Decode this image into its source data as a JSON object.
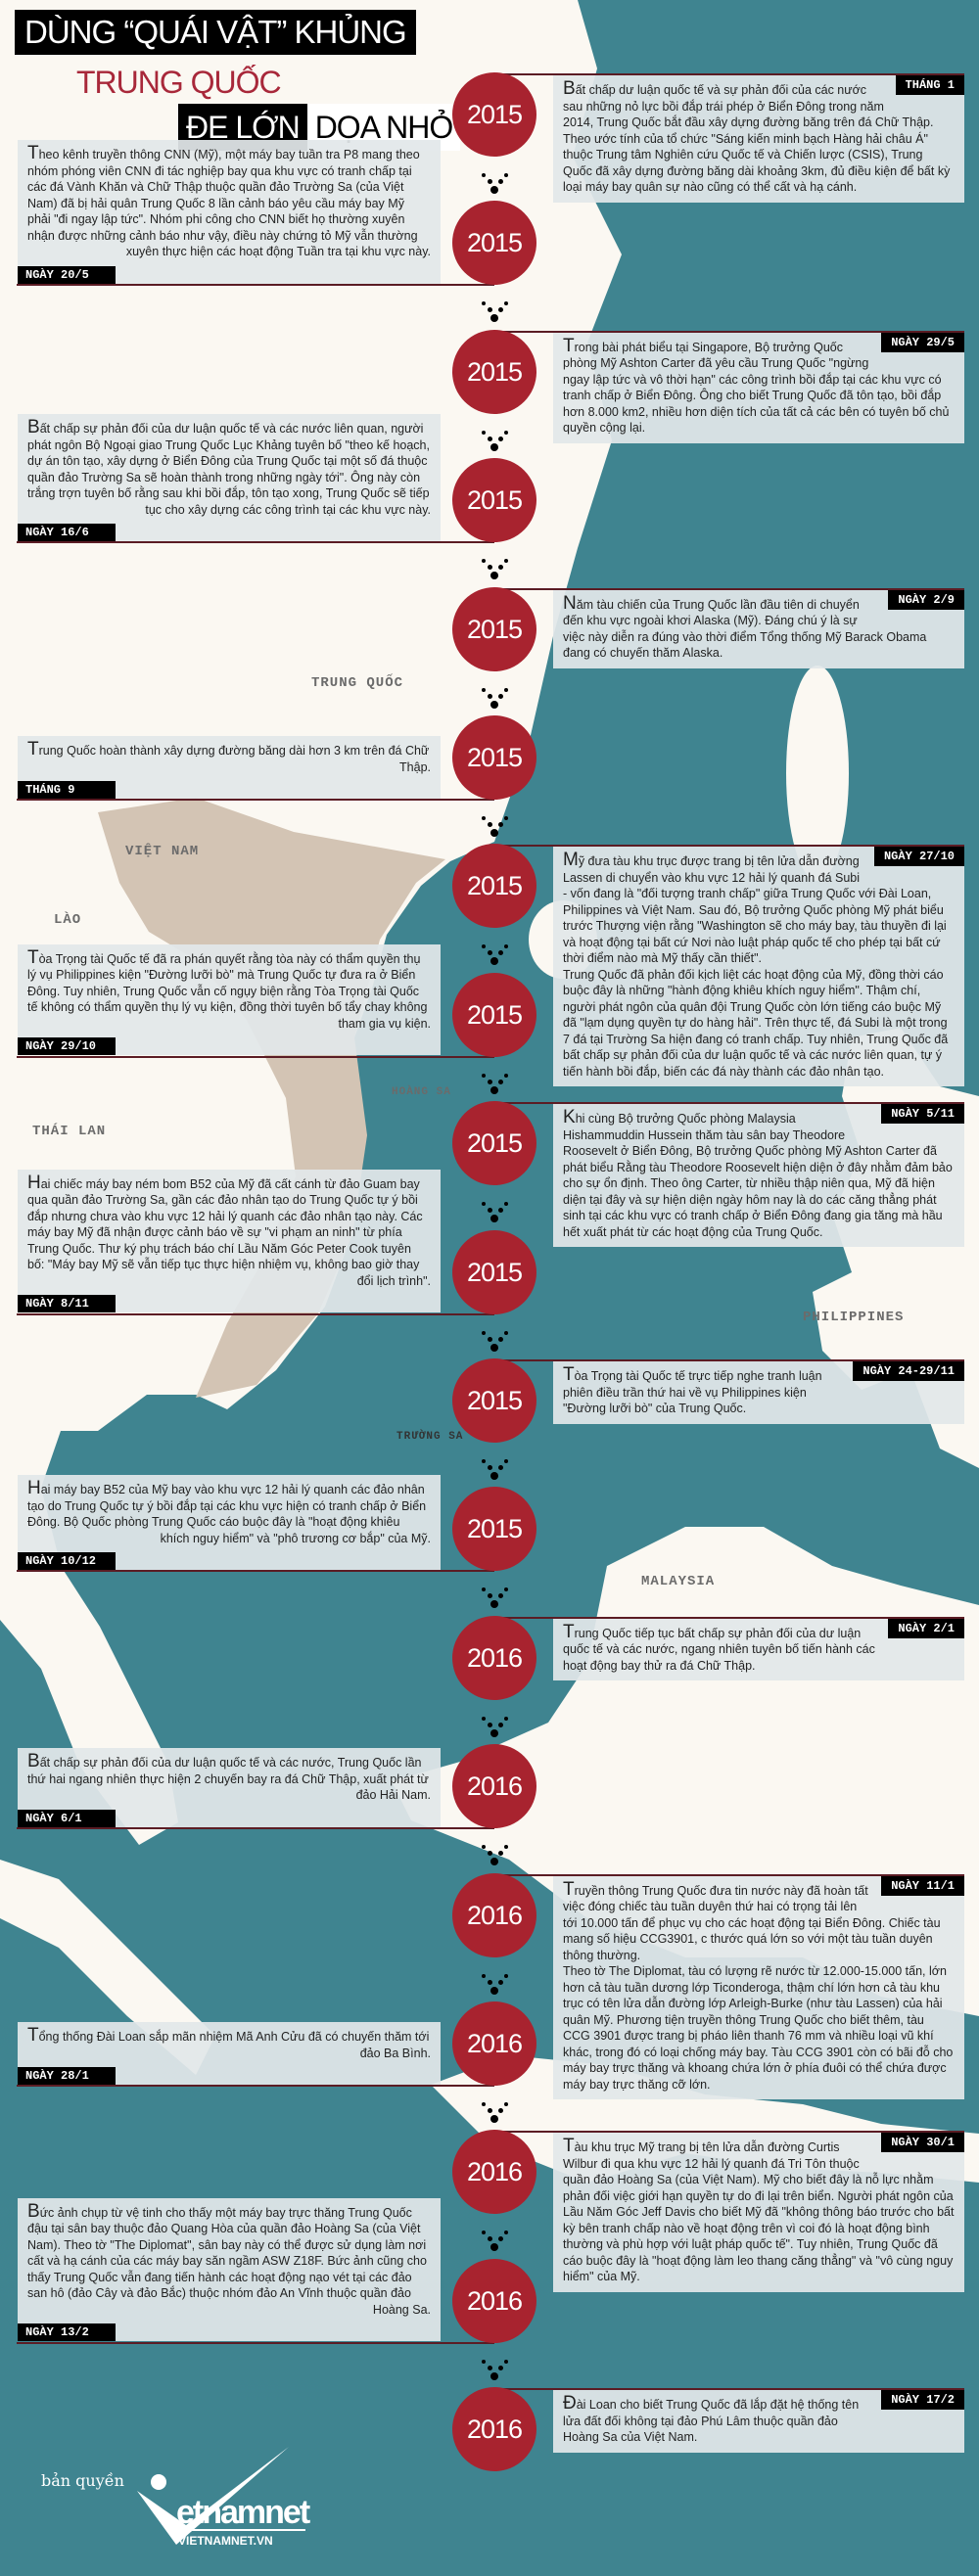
{
  "title": {
    "line1": "DÙNG “QUÁI VẬT” KHỦNG",
    "line2": "TRUNG QUỐC",
    "line3a": "ĐE LỚN",
    "line3b": "DỌA NHỎ"
  },
  "colors": {
    "sea": "#3f8490",
    "land": "#fbf8f2",
    "vietnam": "#d3c4b4",
    "circle": "#a8232f",
    "title_red": "#a8283a"
  },
  "map_labels": {
    "china": "TRUNG QUỐC",
    "vietnam": "VIỆT NAM",
    "laos": "LÀO",
    "thailand": "THÁI LAN",
    "paracel": "HOÀNG SA",
    "philippines": "PHILIPPINES",
    "spratly": "TRƯỜNG SA",
    "malaysia": "MALAYSIA"
  },
  "events": [
    {
      "year": "2015",
      "side": "right",
      "date": "THÁNG 1",
      "paragraphs": [
        "Bất chấp dư luận quốc tế và sự phản đối của các nước sau những nỏ lực bồi đắp trái phép ở Biển Đông trong năm 2014, Trung Quốc bắt đầu xây dựng đường băng trên đá Chữ Thập. Theo ước tính của tổ chức \"Sáng kiến minh bạch Hàng hải châu Á\" thuộc Trung tâm Nghiên cứu Quốc tế và Chiến lược (CSIS), Trung Quốc đã xây dựng đường băng dài khoảng 3km, đủ điều kiện để bất kỳ loại máy bay quân sự nào cũng có thể cất và hạ cánh."
      ]
    },
    {
      "year": "2015",
      "side": "left",
      "date": "NGÀY 20/5",
      "paragraphs": [
        "Theo kênh truyền thông CNN (Mỹ), một máy bay tuần tra P8 mang theo nhóm phóng viên CNN đi tác nghiệp bay qua khu vực có tranh chấp tại các đá Vành Khăn và Chữ Thập thuộc quần đảo Trường Sa (của Việt Nam) đã bị hải quân Trung Quốc 8 lần cảnh báo yêu cầu máy bay Mỹ phải \"đi ngay lập tức\". Nhóm phi công cho CNN biết họ thường xuyên nhận được những cảnh báo như vậy, điều này chứng tỏ Mỹ vẫn thường xuyên thực hiện các hoạt động Tuần tra tại khu vực này."
      ]
    },
    {
      "year": "2015",
      "side": "right",
      "date": "NGÀY 29/5",
      "paragraphs": [
        "Trong bài phát biểu tại Singapore, Bộ trưởng Quốc phòng Mỹ Ashton Carter đã yêu cầu Trung Quốc \"ngừng ngay lập tức và vô thời hạn\" các công trình bồi đắp tại các khu vực có tranh chấp ở Biển Đông. Ông cho biết Trung Quốc đã tôn tạo, bồi đắp hơn 8.000 km2, nhiều hơn diện tích của tất cả các bên có tuyên bố chủ quyền cộng lại."
      ]
    },
    {
      "year": "2015",
      "side": "left",
      "date": "NGÀY 16/6",
      "paragraphs": [
        "Bất chấp sự phản đối của dư luận quốc tế và các nước liên quan, người phát ngôn Bộ Ngoại giao Trung Quốc Lục Khảng tuyên bố \"theo kế hoạch, dự án tôn tạo, xây dựng ở Biển Đông của Trung Quốc tại một số đá thuộc quần đảo Trường Sa sẽ hoàn thành trong những ngày tới\". Ông này còn trắng trợn tuyên bố rằng sau khi bồi đắp, tôn tạo xong, Trung Quốc sẽ tiếp tục cho xây dựng các công trình tại các khu vực này."
      ]
    },
    {
      "year": "2015",
      "side": "right",
      "date": "NGÀY 2/9",
      "paragraphs": [
        "Năm tàu chiến của Trung Quốc lần đầu tiên di chuyển đến khu vực ngoài khơi Alaska (Mỹ). Đáng chú ý là sự việc này diễn ra đúng vào thời điểm Tổng thống Mỹ Barack Obama đang có chuyến thăm Alaska."
      ]
    },
    {
      "year": "2015",
      "side": "left",
      "date": "THÁNG 9",
      "paragraphs": [
        "Trung Quốc hoàn thành xây dựng đường băng dài hơn 3 km trên đá Chữ Thập."
      ]
    },
    {
      "year": "2015",
      "side": "right",
      "date": "NGÀY 27/10",
      "paragraphs": [
        "Mỹ đưa tàu khu trục được trang bị tên lửa dẫn đường Lassen di chuyển vào khu vực 12 hải lý quanh đá Subi - vốn đang là \"đối tượng tranh chấp\" giữa Trung Quốc với Đài Loan, Philippines và Việt Nam. Sau đó, Bộ trưởng Quốc phòng Mỹ phát biểu trước Thượng viện rằng \"Washington sẽ cho máy bay, tàu thuyền đi lại và hoạt động tại bất cứ Nơi nào luật pháp quốc tế cho phép tại bất cứ thời điểm nào mà Mỹ thấy cần thiết\".",
        "Trung Quốc đã phản đối kịch liệt các hoạt động của Mỹ, đồng thời cáo buộc đây là những \"hành động khiêu khích nguy hiểm\". Thậm chí, người phát ngôn của quân đội Trung Quốc còn lớn tiếng cáo buộc Mỹ đã \"lạm dụng quyền tự do hàng hải\". Trên thực tế, đá Subi là một trong 7 đá tại Trường Sa hiện đang có tranh chấp. Tuy nhiên, Trung Quốc đã bất chấp sự phản đối của dư luận quốc tế và các nước liên quan, tự ý tiến hành bồi đắp, biến các đá này thành các đảo nhân tạo."
      ]
    },
    {
      "year": "2015",
      "side": "left",
      "date": "NGÀY 29/10",
      "paragraphs": [
        "Tòa Trọng tài Quốc tế đã ra phán quyết rằng tòa này có thẩm quyền thụ lý vụ Philippines kiện \"Đường lưỡi bò\" mà Trung Quốc tự đưa ra ở Biển Đông. Tuy nhiên, Trung Quốc vẫn cố ngụy biện rằng Tòa Trọng tài Quốc tế không có thẩm quyền thụ lý vụ kiện, đồng thời tuyên bố tẩy chay không tham gia vụ kiện."
      ]
    },
    {
      "year": "2015",
      "side": "right",
      "date": "NGÀY 5/11",
      "paragraphs": [
        "Khi cùng Bộ trưởng Quốc phòng Malaysia Hishammuddin Hussein thăm tàu sân bay Theodore Roosevelt ở Biển Đông, Bộ trưởng Quốc phòng Mỹ Ashton Carter đã phát biểu Rằng tàu Theodore Roosevelt hiện diện ở đây nhằm đảm bảo cho sự ổn định. Theo ông Carter, từ nhiều thập niên qua, Mỹ đã hiện diện tại đây và sự hiện diện ngày hôm nay là do các căng thẳng phát sinh tại các khu vực có tranh chấp ở Biển Đông đang gia tăng mà hầu hết xuất phát từ các hoạt động của Trung Quốc."
      ]
    },
    {
      "year": "2015",
      "side": "left",
      "date": "NGÀY 8/11",
      "paragraphs": [
        "Hai chiếc máy bay ném bom B52 của Mỹ đã cất cánh từ đảo Guam bay qua quần đảo Trường Sa, gần các đảo nhân tạo do Trung Quốc tự ý bồi đắp nhưng chưa vào khu vực 12 hải lý quanh các đảo nhân tạo này. Các máy bay Mỹ đã nhận được cảnh báo về sự \"vi phạm an ninh\" từ phía Trung Quốc. Thư ký phụ trách báo chí Lầu Năm Góc Peter Cook tuyên bố: \"Máy bay Mỹ sẽ vẫn tiếp tục thực hiện nhiệm vụ, không bao giờ thay đổi lịch trình\"."
      ]
    },
    {
      "year": "2015",
      "side": "right",
      "date": "NGÀY 24-29/11",
      "paragraphs": [
        "Tòa Trọng tài Quốc tế trực tiếp nghe tranh luận phiên điều trần thứ hai về vụ Philippines kiện \"Đường lưỡi bò\" của Trung Quốc."
      ]
    },
    {
      "year": "2015",
      "side": "left",
      "date": "NGÀY 10/12",
      "paragraphs": [
        "Hai máy bay B52 của Mỹ bay vào khu vực 12 hải lý quanh các đảo nhân tạo do Trung Quốc tự ý bồi đắp tại các khu vực hiện có tranh chấp ở Biển Đông. Bộ Quốc phòng Trung Quốc cáo buộc đây là \"hoạt động khiêu khích nguy hiểm\" và \"phô trương cơ bắp\" của Mỹ."
      ]
    },
    {
      "year": "2016",
      "side": "right",
      "date": "NGÀY 2/1",
      "paragraphs": [
        "Trung Quốc tiếp tục bất chấp sự phản đối của dư luận quốc tế và các nước, ngang nhiên tuyên bố tiến hành các hoạt động bay thử ra đá Chữ Thập."
      ]
    },
    {
      "year": "2016",
      "side": "left",
      "date": "NGÀY 6/1",
      "paragraphs": [
        "Bất chấp sự phản đối của dư luận quốc tế và các nước, Trung Quốc lần thứ hai ngang nhiên thực hiện 2 chuyến bay ra đá Chữ Thập, xuất phát từ đảo Hải Nam."
      ]
    },
    {
      "year": "2016",
      "side": "right",
      "date": "NGÀY 11/1",
      "paragraphs": [
        "Truyền thông Trung Quốc đưa tin nước này đã hoàn tất việc đóng chiếc tàu tuần duyên thứ hai có trọng tải lên tới 10.000 tấn để phục vụ cho các hoạt động tại Biển Đông. Chiếc tàu mang số hiệu CCG3901, c thước quá lớn so với một tàu tuần duyên thông thường.",
        "Theo tờ The Diplomat, tàu có lượng rẽ nước từ 12.000-15.000 tấn, lớn hơn cả tàu tuần dương lớp Ticonderoga, thậm chí lớn hơn cả tàu khu trục có tên lửa dẫn đường lớp Arleigh-Burke (như tàu Lassen) của hải quân Mỹ. Phương tiện truyền thông Trung Quốc cho biết thêm, tàu CCG 3901 được trang bị pháo liên thanh 76 mm và nhiều loại vũ khí khác, trong đó có loại chống máy bay. Tàu CCG 3901 còn có bãi đỗ cho máy bay trực thăng và khoang chứa lớn ở phía đuôi có thể chứa được máy bay trực thăng cỡ lớn."
      ]
    },
    {
      "year": "2016",
      "side": "left",
      "date": "NGÀY 28/1",
      "paragraphs": [
        "Tổng thống Đài Loan sắp mãn nhiệm Mã Anh Cửu đã có chuyến thăm tới đảo Ba Bình."
      ]
    },
    {
      "year": "2016",
      "side": "right",
      "date": "NGÀY 30/1",
      "paragraphs": [
        "Tàu khu trục Mỹ trang bị tên lửa dẫn đường Curtis Wilbur đi qua khu vực 12 hải lý quanh đá Tri Tôn thuộc quần đảo Hoàng Sa (của Việt Nam). Mỹ cho biết đây là nỗ lực nhằm phản đối việc giới hạn quyền tự do đi lại trên biển. Người phát ngôn của Lầu Năm Góc Jeff Davis cho biết Mỹ đã \"không thông báo trước cho bất kỳ bên tranh chấp nào về hoạt động trên vì coi đó là hoạt động bình thường và phù hợp với luật pháp quốc tế\". Tuy nhiên, Trung Quốc đã cáo buộc đây là \"hoạt động làm leo thang căng thẳng\" và \"vô cùng nguy hiểm\" của Mỹ."
      ]
    },
    {
      "year": "2016",
      "side": "left",
      "date": "NGÀY 13/2",
      "paragraphs": [
        "Bức ảnh chụp từ vệ tinh cho thấy một máy bay trực thăng Trung Quốc đậu tại sân bay thuộc đảo Quang Hòa của quần đảo Hoàng Sa (của Việt Nam). Theo tờ \"The Diplomat\", sân bay này có thể được sử dụng làm nơi cất và hạ cánh của các máy bay săn ngầm ASW Z18F. Bức ảnh cũng cho thấy Trung Quốc vẫn đang tiến hành các hoạt động nạo vét tại các đảo san hô (đảo Cây và đảo Bắc) thuộc nhóm đảo An Vĩnh thuộc quần đảo Hoàng Sa."
      ]
    },
    {
      "year": "2016",
      "side": "right",
      "date": "NGÀY 17/2",
      "paragraphs": [
        "Đài Loan cho biết Trung Quốc đã lắp đặt hệ thống tên lửa đất đối không tại đảo Phú Lâm thuộc quần đảo Hoàng Sa của Việt Nam."
      ]
    }
  ],
  "footer": {
    "copyright": "bản quyền",
    "logo_text": "vietnamnet",
    "logo_url_text": "VIETNAMNET.VN"
  }
}
